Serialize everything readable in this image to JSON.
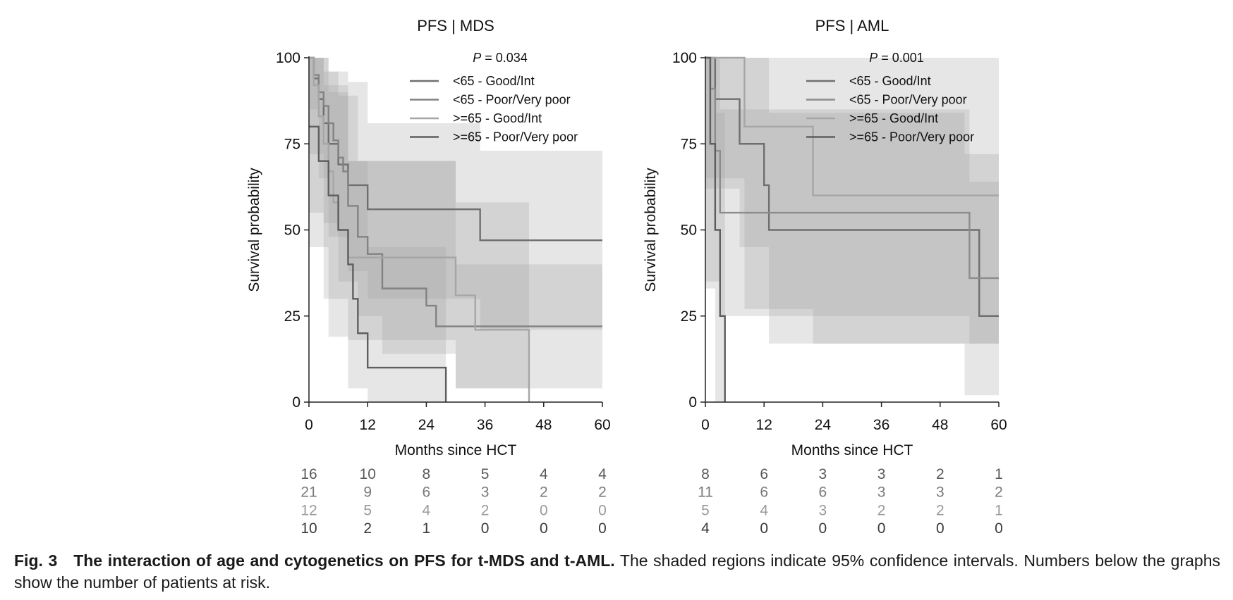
{
  "chart_data": [
    {
      "type": "line",
      "subtype": "kaplan-meier step curves with 95% CI bands",
      "title": "PFS | MDS",
      "annotation": "P = 0.034",
      "annotation_italic": "P",
      "annotation_rest": " = 0.034",
      "xlabel": "Months since HCT",
      "ylabel": "Survival probability",
      "xlim": [
        0,
        60
      ],
      "ylim": [
        0,
        100
      ],
      "xticks": [
        0,
        12,
        24,
        36,
        48,
        60
      ],
      "yticks": [
        0,
        25,
        50,
        75,
        100
      ],
      "legend_position": "top-right",
      "series": [
        {
          "name": "<65 - Good/Int",
          "color": "#6f6f6f",
          "x": [
            0,
            1,
            2,
            3,
            4,
            6,
            8,
            12,
            35,
            60
          ],
          "y": [
            100,
            94,
            88,
            81,
            75,
            69,
            63,
            56,
            47,
            47
          ],
          "ci": [
            {
              "x": [
                0,
                2
              ],
              "lower": 85,
              "upper": 100
            },
            {
              "x": [
                2,
                4
              ],
              "lower": 65,
              "upper": 100
            },
            {
              "x": [
                4,
                8
              ],
              "lower": 48,
              "upper": 96
            },
            {
              "x": [
                8,
                12
              ],
              "lower": 38,
              "upper": 93
            },
            {
              "x": [
                12,
                35
              ],
              "lower": 30,
              "upper": 81
            },
            {
              "x": [
                35,
                60
              ],
              "lower": 21,
              "upper": 73
            }
          ]
        },
        {
          "name": "<65 - Poor/Very poor",
          "color": "#828282",
          "x": [
            0,
            1,
            2,
            3,
            4,
            5,
            6,
            7,
            8,
            10,
            12,
            15,
            24,
            26,
            60
          ],
          "y": [
            100,
            95,
            90,
            86,
            81,
            76,
            71,
            67,
            57,
            48,
            43,
            33,
            28,
            22,
            22
          ],
          "ci": [
            {
              "x": [
                0,
                3
              ],
              "lower": 72,
              "upper": 100
            },
            {
              "x": [
                3,
                6
              ],
              "lower": 52,
              "upper": 96
            },
            {
              "x": [
                6,
                10
              ],
              "lower": 35,
              "upper": 89
            },
            {
              "x": [
                10,
                15
              ],
              "lower": 25,
              "upper": 70
            },
            {
              "x": [
                15,
                30
              ],
              "lower": 14,
              "upper": 70
            },
            {
              "x": [
                30,
                60
              ],
              "lower": 4,
              "upper": 40
            }
          ]
        },
        {
          "name": ">=65 - Good/Int",
          "color": "#a6a6a6",
          "x": [
            0,
            1,
            2,
            3,
            4,
            5,
            6,
            8,
            10,
            12,
            30,
            34,
            45
          ],
          "y": [
            100,
            92,
            83,
            75,
            67,
            58,
            50,
            42,
            42,
            42,
            31,
            21,
            0
          ],
          "ci": [
            {
              "x": [
                0,
                3
              ],
              "lower": 55,
              "upper": 100
            },
            {
              "x": [
                3,
                8
              ],
              "lower": 30,
              "upper": 92
            },
            {
              "x": [
                8,
                30
              ],
              "lower": 18,
              "upper": 70
            },
            {
              "x": [
                30,
                45
              ],
              "lower": 4,
              "upper": 58
            }
          ]
        },
        {
          "name": ">=65 - Poor/Very poor",
          "color": "#5e5e5e",
          "x": [
            0,
            2,
            4,
            6,
            8,
            9,
            10,
            12,
            24,
            28
          ],
          "y": [
            80,
            70,
            60,
            50,
            40,
            30,
            20,
            10,
            10,
            0
          ],
          "ci": [
            {
              "x": [
                0,
                4
              ],
              "lower": 45,
              "upper": 100
            },
            {
              "x": [
                4,
                8
              ],
              "lower": 19,
              "upper": 90
            },
            {
              "x": [
                8,
                12
              ],
              "lower": 4,
              "upper": 70
            },
            {
              "x": [
                12,
                28
              ],
              "lower": 0,
              "upper": 45
            }
          ]
        }
      ],
      "at_risk": {
        "times": [
          0,
          12,
          24,
          36,
          48,
          60
        ],
        "rows": [
          [
            "16",
            "10",
            "8",
            "5",
            "4",
            "4"
          ],
          [
            "21",
            "9",
            "6",
            "3",
            "2",
            "2"
          ],
          [
            "12",
            "5",
            "4",
            "2",
            "0",
            "0"
          ],
          [
            "10",
            "2",
            "1",
            "0",
            "0",
            "0"
          ]
        ]
      }
    },
    {
      "type": "line",
      "subtype": "kaplan-meier step curves with 95% CI bands",
      "title": "PFS | AML",
      "annotation": "P = 0.001",
      "annotation_italic": "P",
      "annotation_rest": " = 0.001",
      "xlabel": "Months since HCT",
      "ylabel": "Survival probability",
      "xlim": [
        0,
        60
      ],
      "ylim": [
        0,
        100
      ],
      "xticks": [
        0,
        12,
        24,
        36,
        48,
        60
      ],
      "yticks": [
        0,
        25,
        50,
        75,
        100
      ],
      "legend_position": "top-right",
      "series": [
        {
          "name": "<65 - Good/Int",
          "color": "#6f6f6f",
          "x": [
            0,
            2,
            7,
            12,
            13,
            53,
            56,
            60
          ],
          "y": [
            100,
            88,
            75,
            63,
            50,
            50,
            25,
            25
          ],
          "ci": [
            {
              "x": [
                0,
                7
              ],
              "lower": 62,
              "upper": 100
            },
            {
              "x": [
                7,
                13
              ],
              "lower": 45,
              "upper": 100
            },
            {
              "x": [
                13,
                53
              ],
              "lower": 17,
              "upper": 84
            },
            {
              "x": [
                53,
                60
              ],
              "lower": 2,
              "upper": 72
            }
          ]
        },
        {
          "name": "<65 - Poor/Very poor",
          "color": "#8c8c8c",
          "x": [
            0,
            1,
            2,
            3,
            54,
            60
          ],
          "y": [
            100,
            91,
            73,
            55,
            36,
            36
          ],
          "ci": [
            {
              "x": [
                0,
                3
              ],
              "lower": 35,
              "upper": 100
            },
            {
              "x": [
                3,
                54
              ],
              "lower": 25,
              "upper": 85
            },
            {
              "x": [
                54,
                60
              ],
              "lower": 17,
              "upper": 64
            }
          ]
        },
        {
          "name": ">=65 - Good/Int",
          "color": "#a6a6a6",
          "x": [
            0,
            8,
            22,
            60
          ],
          "y": [
            100,
            80,
            60,
            60
          ],
          "ci": [
            {
              "x": [
                0,
                8
              ],
              "lower": 65,
              "upper": 100
            },
            {
              "x": [
                8,
                22
              ],
              "lower": 27,
              "upper": 100
            },
            {
              "x": [
                22,
                60
              ],
              "lower": 17,
              "upper": 100
            }
          ]
        },
        {
          "name": ">=65 - Poor/Very poor",
          "color": "#5e5e5e",
          "x": [
            0,
            1,
            2,
            3,
            4
          ],
          "y": [
            100,
            75,
            50,
            25,
            0
          ],
          "ci": [
            {
              "x": [
                0,
                2
              ],
              "lower": 33,
              "upper": 100
            },
            {
              "x": [
                2,
                4
              ],
              "lower": 0,
              "upper": 84
            }
          ]
        }
      ],
      "at_risk": {
        "times": [
          0,
          12,
          24,
          36,
          48,
          60
        ],
        "rows": [
          [
            "8",
            "6",
            "3",
            "3",
            "2",
            "1"
          ],
          [
            "11",
            "6",
            "6",
            "3",
            "3",
            "2"
          ],
          [
            "5",
            "4",
            "3",
            "2",
            "2",
            "1"
          ],
          [
            "4",
            "0",
            "0",
            "0",
            "0",
            "0"
          ]
        ]
      }
    }
  ],
  "caption": {
    "fig_label": "Fig. 3",
    "title_bold": "The interaction of age and cytogenetics on PFS for t-MDS and t-AML.",
    "text": " The shaded regions indicate 95% confidence intervals. Numbers below the graphs show the number of patients at risk."
  },
  "at_risk_colors": [
    "#5a5a5a",
    "#7a7a7a",
    "#9a9a9a",
    "#3a3a3a"
  ]
}
